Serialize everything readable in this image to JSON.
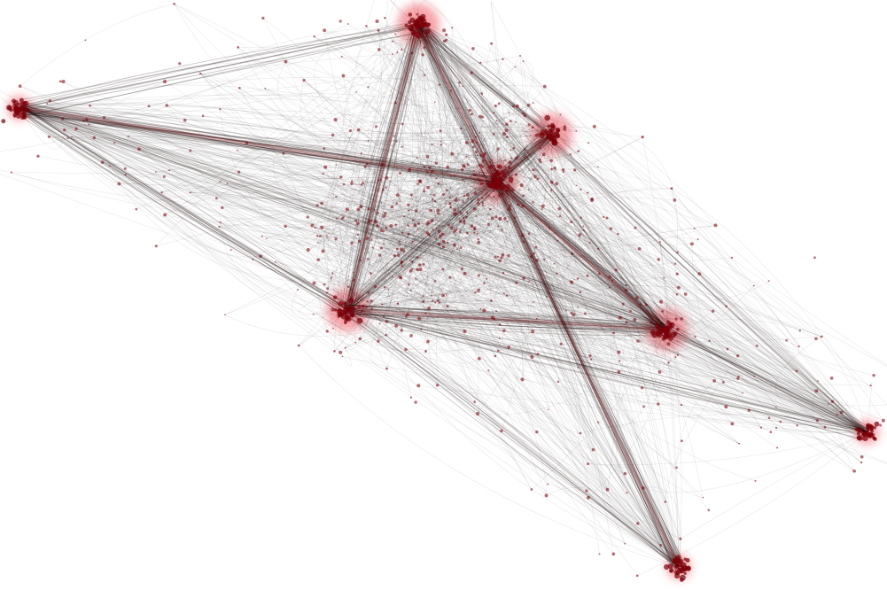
{
  "figure": {
    "kind": "edge-bundled network layout",
    "edge_color": "#1a0a0a",
    "node_color": "#7a0008",
    "halo_color": "#e8363f",
    "background": "#ffffff"
  }
}
